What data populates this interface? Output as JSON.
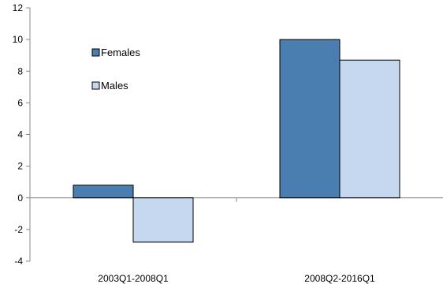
{
  "chart_data": {
    "type": "bar",
    "categories": [
      "2003Q1-2008Q1",
      "2008Q2-2016Q1"
    ],
    "series": [
      {
        "name": "Females",
        "values": [
          0.8,
          10.0
        ],
        "color": "#4a7eb0"
      },
      {
        "name": "Males",
        "values": [
          -2.8,
          8.7
        ],
        "color": "#c6d8ef"
      }
    ],
    "ylim": [
      -4,
      12
    ],
    "yticks": [
      -4,
      -2,
      0,
      2,
      4,
      6,
      8,
      10,
      12
    ],
    "xlabel": "",
    "ylabel": "",
    "title": "",
    "grid": false,
    "legend": "upper-left"
  }
}
